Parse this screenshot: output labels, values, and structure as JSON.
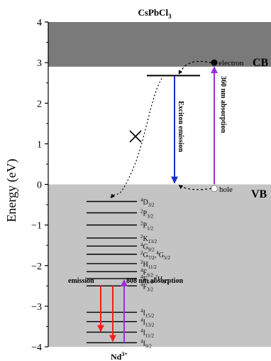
{
  "title": "CsPbCl",
  "title_sub": "3",
  "ylabel": "Energy (eV)",
  "cb_label": "CB",
  "vb_label": "VB",
  "electron_label": "electron",
  "hole_label": "hole",
  "exciton_label": "Exciton emission",
  "abs360_label": "360 nm absorption",
  "emission_label": "emission",
  "abs808_label": "808 nm absorption",
  "nd_label": "Nd",
  "nd_sup": "3+",
  "colors": {
    "cb_band": "#7a7a7a",
    "vb_band": "#c4c4c4",
    "exciton_arrow": "#1c2fd6",
    "absorption_arrow": "#9b2fd6",
    "emission_arrow": "#ff1a1a"
  },
  "chart_data": {
    "type": "energy-level-diagram",
    "ylim": [
      -4,
      4
    ],
    "yticks": [
      4,
      3,
      2,
      1,
      0,
      -1,
      -2,
      -3,
      -4
    ],
    "bands": [
      {
        "name": "CB",
        "from": 2.9,
        "to": 4.0
      },
      {
        "name": "VB",
        "from": -4.0,
        "to": 0.0
      }
    ],
    "exciton_level": 2.68,
    "electron_energy": 3.0,
    "hole_energy": -0.1,
    "nd_levels": [
      {
        "base": "4",
        "letter": "D",
        "sub": "3/2",
        "energy": -0.42
      },
      {
        "base": "2",
        "letter": "P",
        "sub": "3/2",
        "energy": -0.7
      },
      {
        "base": "2",
        "letter": "P",
        "sub": "1/2",
        "energy": -1.0
      },
      {
        "base": "2",
        "letter": "K",
        "sub": "13/2",
        "energy": -1.32
      },
      {
        "base": "4",
        "letter": "G",
        "sub": "9/2",
        "energy": -1.52
      },
      {
        "base": "2",
        "letter": "G",
        "sub": "7/2",
        "base2": "4",
        "letter2": "G",
        "sub2": "5/2",
        "energy": -1.72
      },
      {
        "base": "2",
        "letter": "H",
        "sub": "11/2",
        "energy": -1.95
      },
      {
        "base": "4",
        "letter": "F",
        "sub": "9/2",
        "energy": -2.15
      },
      {
        "base": "4",
        "letter": "F",
        "sub": "5/2",
        "base2": "2",
        "letter2": "H",
        "sub2": "9/2",
        "energy": -2.32
      },
      {
        "base": "4",
        "letter": "F",
        "sub": "3/2",
        "energy": -2.5
      },
      {
        "base": "4",
        "letter": "I",
        "sub": "15/2",
        "energy": -3.15
      },
      {
        "base": "4",
        "letter": "I",
        "sub": "13/2",
        "energy": -3.38
      },
      {
        "base": "4",
        "letter": "I",
        "sub": "11/2",
        "energy": -3.64
      },
      {
        "base": "4",
        "letter": "I",
        "sub": "9/2",
        "energy": -3.9
      }
    ]
  }
}
